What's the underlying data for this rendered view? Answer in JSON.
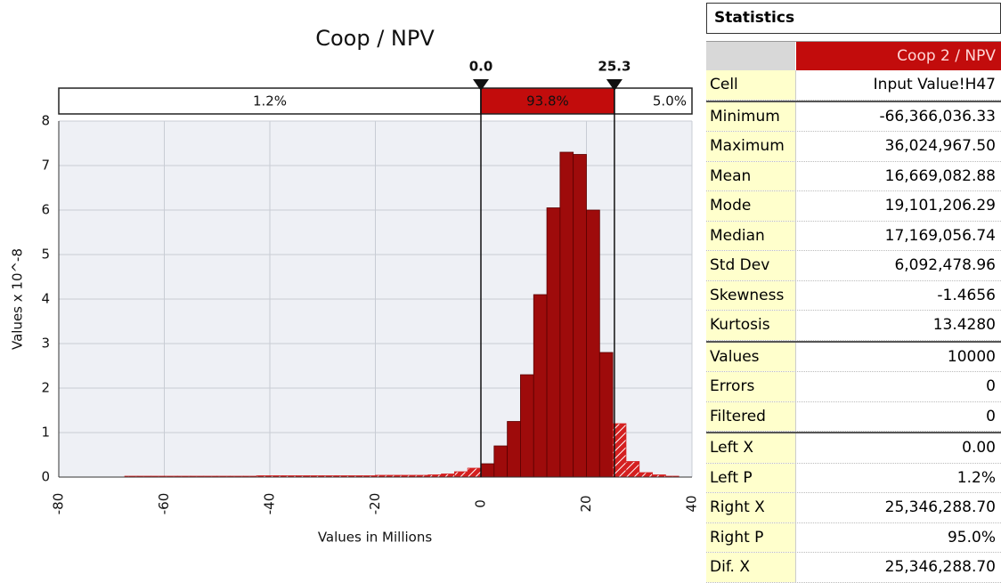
{
  "chart_data": {
    "type": "histogram",
    "title": "Coop / NPV",
    "x_label": "Values in Millions",
    "y_label": "Values x 10^-8",
    "bins": [
      -67.5,
      -65,
      -62.5,
      -60,
      -57.5,
      -55,
      -52.5,
      -50,
      -47.5,
      -45,
      -42.5,
      -40,
      -37.5,
      -35,
      -32.5,
      -30,
      -27.5,
      -25,
      -22.5,
      -20,
      -17.5,
      -15,
      -12.5,
      -10,
      -7.5,
      -5,
      -2.5,
      0,
      2.5,
      5,
      7.5,
      10,
      12.5,
      15,
      17.5,
      20,
      22.5,
      25,
      27.5,
      30,
      32.5,
      35,
      37.5
    ],
    "values": [
      0.02,
      0.02,
      0.02,
      0.02,
      0.02,
      0.02,
      0.02,
      0.02,
      0.02,
      0.02,
      0.03,
      0.03,
      0.03,
      0.03,
      0.03,
      0.03,
      0.03,
      0.03,
      0.03,
      0.04,
      0.04,
      0.04,
      0.04,
      0.05,
      0.07,
      0.12,
      0.2,
      0.3,
      0.7,
      1.25,
      2.3,
      4.1,
      6.05,
      7.3,
      7.25,
      6.0,
      2.8,
      1.2,
      0.35,
      0.1,
      0.05,
      0.02
    ],
    "color": "#9e0b0b",
    "tail_color": "#d42020",
    "xlim": [
      -80,
      40
    ],
    "xticks": [
      -80,
      -60,
      -40,
      -20,
      0,
      20,
      40
    ],
    "ylim": [
      0,
      8
    ],
    "yticks": [
      0,
      1,
      2,
      3,
      4,
      5,
      6,
      7,
      8
    ],
    "grid": true,
    "delimiters": [
      {
        "value": 0,
        "label": "0.0"
      },
      {
        "value": 25.3,
        "label": "25.3"
      }
    ],
    "regions": {
      "values": [
        1.2,
        93.8,
        5.0
      ],
      "value_labels": [
        "1.2%",
        "93.8%",
        "5.0%"
      ]
    }
  },
  "statistics": {
    "title": "Statistics",
    "column": "Coop 2 / NPV",
    "rows": [
      [
        "Cell",
        "Input Value!H47"
      ],
      [
        "Minimum",
        "-66,366,036.33"
      ],
      [
        "Maximum",
        "36,024,967.50"
      ],
      [
        "Mean",
        "16,669,082.88"
      ],
      [
        "Mode",
        "19,101,206.29"
      ],
      [
        "Median",
        "17,169,056.74"
      ],
      [
        "Std Dev",
        "6,092,478.96"
      ],
      [
        "Skewness",
        "-1.4656"
      ],
      [
        "Kurtosis",
        "13.4280"
      ],
      [
        "Values",
        "10000"
      ],
      [
        "Errors",
        "0"
      ],
      [
        "Filtered",
        "0"
      ],
      [
        "Left X",
        "0.00"
      ],
      [
        "Left P",
        "1.2%"
      ],
      [
        "Right X",
        "25,346,288.70"
      ],
      [
        "Right P",
        "95.0%"
      ],
      [
        "Dif. X",
        "25,346,288.70"
      ]
    ]
  }
}
